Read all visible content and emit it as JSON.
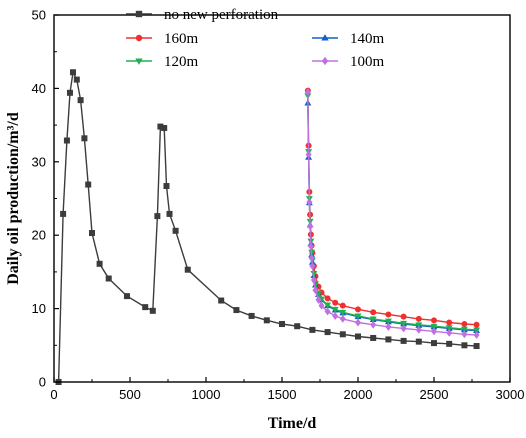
{
  "chart_data": {
    "type": "line",
    "xlabel": "Time/d",
    "ylabel": "Daily oil production/m³/d",
    "xlim": [
      0,
      3000
    ],
    "ylim": [
      0,
      50
    ],
    "xticks": [
      "0",
      "500",
      "1000",
      "1500",
      "2000",
      "2500",
      "3000"
    ],
    "yticks": [
      "0",
      "10",
      "20",
      "30",
      "40",
      "50"
    ],
    "grid": false,
    "legend_placement": "top-center",
    "series": [
      {
        "name": "no new perforation",
        "color": "#3c3c3c",
        "marker": "square",
        "x": [
          30,
          60,
          85,
          105,
          125,
          150,
          175,
          200,
          225,
          250,
          300,
          360,
          480,
          600,
          650,
          680,
          700,
          725,
          740,
          760,
          800,
          880,
          1100,
          1200,
          1300,
          1400,
          1500,
          1600,
          1700,
          1800,
          1900,
          2000,
          2100,
          2200,
          2300,
          2400,
          2500,
          2600,
          2700,
          2780
        ],
        "y": [
          0,
          22.9,
          32.9,
          39.4,
          42.2,
          41.2,
          38.4,
          33.2,
          26.9,
          20.3,
          16.1,
          14.1,
          11.7,
          10.2,
          9.7,
          22.6,
          34.8,
          34.6,
          26.7,
          22.9,
          20.6,
          15.3,
          11.1,
          9.8,
          9.0,
          8.4,
          7.9,
          7.6,
          7.1,
          6.8,
          6.5,
          6.2,
          6.0,
          5.8,
          5.6,
          5.5,
          5.3,
          5.2,
          5.0,
          4.9
        ]
      },
      {
        "name": "160m",
        "color": "#f03030",
        "marker": "circle",
        "x": [
          1670,
          1675,
          1680,
          1685,
          1690,
          1695,
          1700,
          1710,
          1720,
          1740,
          1760,
          1800,
          1850,
          1900,
          2000,
          2100,
          2200,
          2300,
          2400,
          2500,
          2600,
          2700,
          2780
        ],
        "y": [
          39.7,
          32.2,
          25.9,
          22.8,
          20.1,
          18.6,
          17.6,
          15.8,
          14.4,
          13.0,
          12.2,
          11.4,
          10.8,
          10.4,
          9.9,
          9.5,
          9.2,
          8.9,
          8.6,
          8.4,
          8.1,
          7.9,
          7.8
        ]
      },
      {
        "name": "140m",
        "color": "#1060c8",
        "marker": "triangle-up",
        "x": [
          1670,
          1675,
          1680,
          1685,
          1690,
          1695,
          1700,
          1710,
          1720,
          1740,
          1760,
          1800,
          1850,
          1900,
          2000,
          2100,
          2200,
          2300,
          2400,
          2500,
          2600,
          2700,
          2780
        ],
        "y": [
          38.0,
          30.6,
          24.4,
          21.4,
          18.8,
          17.3,
          16.3,
          14.5,
          13.2,
          11.9,
          11.2,
          10.4,
          9.8,
          9.4,
          8.9,
          8.5,
          8.2,
          7.9,
          7.7,
          7.5,
          7.3,
          7.1,
          7.0
        ]
      },
      {
        "name": "120m",
        "color": "#20b050",
        "marker": "triangle-down",
        "x": [
          1670,
          1675,
          1680,
          1685,
          1690,
          1695,
          1700,
          1710,
          1720,
          1740,
          1760,
          1800,
          1850,
          1900,
          2000,
          2100,
          2200,
          2300,
          2400,
          2500,
          2600,
          2700,
          2780
        ],
        "y": [
          39.0,
          31.4,
          25.0,
          21.9,
          19.2,
          17.7,
          16.6,
          14.8,
          13.4,
          12.1,
          11.3,
          10.5,
          9.9,
          9.5,
          9.0,
          8.6,
          8.3,
          8.0,
          7.8,
          7.6,
          7.4,
          7.2,
          7.1
        ]
      },
      {
        "name": "100m",
        "color": "#c070e0",
        "marker": "diamond",
        "x": [
          1670,
          1675,
          1680,
          1685,
          1690,
          1695,
          1700,
          1710,
          1720,
          1740,
          1760,
          1800,
          1850,
          1900,
          2000,
          2100,
          2200,
          2300,
          2400,
          2500,
          2600,
          2700,
          2780
        ],
        "y": [
          39.5,
          31.0,
          24.5,
          21.2,
          18.5,
          16.9,
          15.8,
          13.9,
          12.5,
          11.2,
          10.4,
          9.6,
          9.0,
          8.6,
          8.1,
          7.8,
          7.5,
          7.3,
          7.1,
          6.9,
          6.7,
          6.5,
          6.4
        ]
      }
    ]
  }
}
